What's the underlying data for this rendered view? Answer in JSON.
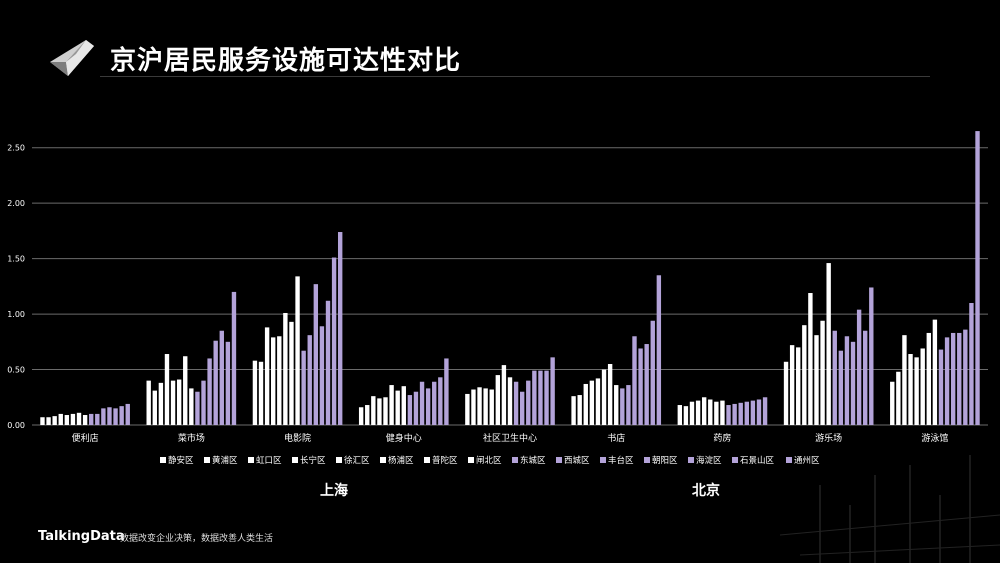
{
  "header": {
    "title": "京沪居民服务设施可达性对比"
  },
  "footer": {
    "brand": "TalkingData",
    "slogan": "数据改变企业决策，数据改善人类生活"
  },
  "groups": {
    "shanghai": "上海",
    "beijing": "北京"
  },
  "colors": {
    "shanghai": "#ffffff",
    "beijing": "#b3a3d9",
    "grid": "#6b6b6b",
    "text": "#ffffff"
  },
  "chart_data": {
    "type": "bar",
    "categories": [
      "便利店",
      "菜市场",
      "电影院",
      "健身中心",
      "社区卫生中心",
      "书店",
      "药房",
      "游乐场",
      "游泳馆"
    ],
    "ylim": [
      0,
      2.75
    ],
    "yticks": [
      "0.00",
      "0.50",
      "1.00",
      "1.50",
      "2.00",
      "2.50"
    ],
    "ytick_values": [
      0,
      0.5,
      1.0,
      1.5,
      2.0,
      2.5
    ],
    "legend_position": "bottom",
    "series": [
      {
        "name": "静安区",
        "city": "上海",
        "values": [
          0.07,
          0.4,
          0.58,
          0.16,
          0.28,
          0.26,
          0.18,
          0.57,
          0.39
        ]
      },
      {
        "name": "黄浦区",
        "city": "上海",
        "values": [
          0.07,
          0.31,
          0.57,
          0.18,
          0.32,
          0.27,
          0.17,
          0.72,
          0.48
        ]
      },
      {
        "name": "虹口区",
        "city": "上海",
        "values": [
          0.08,
          0.38,
          0.88,
          0.26,
          0.34,
          0.37,
          0.21,
          0.7,
          0.81
        ]
      },
      {
        "name": "长宁区",
        "city": "上海",
        "values": [
          0.1,
          0.64,
          0.79,
          0.24,
          0.33,
          0.4,
          0.22,
          0.9,
          0.64
        ]
      },
      {
        "name": "徐汇区",
        "city": "上海",
        "values": [
          0.09,
          0.4,
          0.8,
          0.25,
          0.32,
          0.42,
          0.25,
          1.19,
          0.61
        ]
      },
      {
        "name": "杨浦区",
        "city": "上海",
        "values": [
          0.1,
          0.41,
          1.01,
          0.36,
          0.45,
          0.5,
          0.23,
          0.81,
          0.69
        ]
      },
      {
        "name": "普陀区",
        "city": "上海",
        "values": [
          0.11,
          0.62,
          0.93,
          0.31,
          0.54,
          0.55,
          0.21,
          0.94,
          0.83
        ]
      },
      {
        "name": "闸北区",
        "city": "上海",
        "values": [
          0.09,
          0.33,
          1.34,
          0.35,
          0.43,
          0.36,
          0.22,
          1.46,
          0.95
        ]
      },
      {
        "name": "东城区",
        "city": "北京",
        "values": [
          0.1,
          0.3,
          0.67,
          0.27,
          0.39,
          0.33,
          0.18,
          0.85,
          0.68
        ]
      },
      {
        "name": "西城区",
        "city": "北京",
        "values": [
          0.1,
          0.4,
          0.81,
          0.3,
          0.3,
          0.36,
          0.19,
          0.67,
          0.79
        ]
      },
      {
        "name": "丰台区",
        "city": "北京",
        "values": [
          0.15,
          0.6,
          1.27,
          0.39,
          0.4,
          0.8,
          0.2,
          0.8,
          0.83
        ]
      },
      {
        "name": "朝阳区",
        "city": "北京",
        "values": [
          0.16,
          0.76,
          0.89,
          0.33,
          0.49,
          0.69,
          0.21,
          0.75,
          0.83
        ]
      },
      {
        "name": "海淀区",
        "city": "北京",
        "values": [
          0.15,
          0.85,
          1.12,
          0.39,
          0.49,
          0.73,
          0.22,
          1.04,
          0.86
        ]
      },
      {
        "name": "石景山区",
        "city": "北京",
        "values": [
          0.17,
          0.75,
          1.51,
          0.43,
          0.49,
          0.94,
          0.23,
          0.85,
          1.1
        ]
      },
      {
        "name": "通州区",
        "city": "北京",
        "values": [
          0.19,
          1.2,
          1.74,
          0.6,
          0.61,
          1.35,
          0.25,
          1.24,
          2.65
        ]
      }
    ]
  }
}
